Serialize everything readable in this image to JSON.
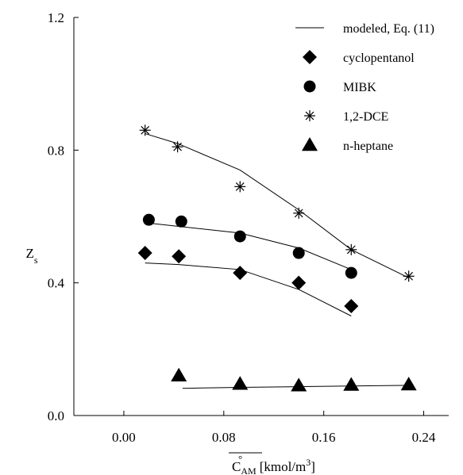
{
  "chart_data": {
    "type": "scatter",
    "xlim": [
      -0.04,
      0.26
    ],
    "ylim": [
      0.0,
      1.2
    ],
    "x_ticks": [
      0.0,
      0.08,
      0.16,
      0.24
    ],
    "y_ticks": [
      0.0,
      0.4,
      0.8,
      1.2
    ],
    "x_tick_labels": [
      "0.00",
      "0.08",
      "0.16",
      "0.24"
    ],
    "y_tick_labels": [
      "0.0",
      "0.4",
      "0.8",
      "1.2"
    ],
    "xlabel": {
      "main": "C",
      "superscript": "°",
      "subscript": "AM",
      "units": "[kmol/m",
      "units_sup": "3",
      "units_close": "]"
    },
    "ylabel": {
      "main": "Z",
      "subscript": "s"
    },
    "grid": false,
    "legend_position": "top-right",
    "legend": [
      {
        "label": "modeled, Eq. (11)",
        "marker": "line"
      },
      {
        "label": "cyclopentanol",
        "marker": "diamond"
      },
      {
        "label": "MIBK",
        "marker": "circle"
      },
      {
        "label": "1,2-DCE",
        "marker": "asterisk"
      },
      {
        "label": "n-heptane",
        "marker": "triangle"
      }
    ],
    "series": [
      {
        "name": "cyclopentanol",
        "marker": "diamond",
        "points": [
          [
            0.017,
            0.49
          ],
          [
            0.044,
            0.48
          ],
          [
            0.093,
            0.43
          ],
          [
            0.14,
            0.4
          ],
          [
            0.182,
            0.33
          ]
        ],
        "model": [
          [
            0.017,
            0.46
          ],
          [
            0.044,
            0.455
          ],
          [
            0.093,
            0.44
          ],
          [
            0.14,
            0.38
          ],
          [
            0.182,
            0.3
          ]
        ]
      },
      {
        "name": "MIBK",
        "marker": "circle",
        "points": [
          [
            0.02,
            0.59
          ],
          [
            0.046,
            0.585
          ],
          [
            0.093,
            0.54
          ],
          [
            0.14,
            0.49
          ],
          [
            0.182,
            0.43
          ]
        ],
        "model": [
          [
            0.02,
            0.58
          ],
          [
            0.093,
            0.55
          ],
          [
            0.14,
            0.505
          ],
          [
            0.182,
            0.44
          ]
        ]
      },
      {
        "name": "1,2-DCE",
        "marker": "asterisk",
        "points": [
          [
            0.017,
            0.86
          ],
          [
            0.043,
            0.81
          ],
          [
            0.093,
            0.69
          ],
          [
            0.14,
            0.61
          ],
          [
            0.182,
            0.5
          ],
          [
            0.228,
            0.42
          ]
        ],
        "model": [
          [
            0.017,
            0.85
          ],
          [
            0.043,
            0.82
          ],
          [
            0.093,
            0.74
          ],
          [
            0.14,
            0.62
          ],
          [
            0.182,
            0.5
          ],
          [
            0.228,
            0.415
          ]
        ]
      },
      {
        "name": "n-heptane",
        "marker": "triangle",
        "points": [
          [
            0.044,
            0.12
          ],
          [
            0.093,
            0.095
          ],
          [
            0.14,
            0.09
          ],
          [
            0.182,
            0.092
          ],
          [
            0.228,
            0.093
          ]
        ],
        "model": [
          [
            0.047,
            0.082
          ],
          [
            0.093,
            0.085
          ],
          [
            0.14,
            0.087
          ],
          [
            0.182,
            0.089
          ],
          [
            0.228,
            0.091
          ]
        ]
      }
    ]
  }
}
